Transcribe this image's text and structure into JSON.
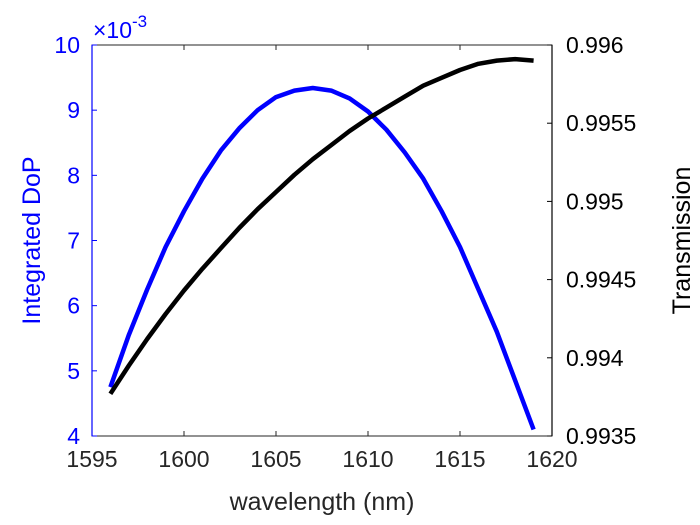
{
  "chart_data": {
    "type": "line",
    "title": "",
    "xlabel": "wavelength (nm)",
    "ylabel_left": "Integrated DoP",
    "ylabel_right": "Transmission",
    "xlim": [
      1595,
      1620
    ],
    "ylim_left": [
      4,
      10
    ],
    "ylim_right": [
      0.9935,
      0.996
    ],
    "x_ticks": [
      "1595",
      "1600",
      "1605",
      "1610",
      "1615",
      "1620"
    ],
    "y_left_ticks": [
      "4",
      "5",
      "6",
      "7",
      "8",
      "9",
      "10"
    ],
    "y_right_ticks": [
      "0.9935",
      "0.994",
      "0.9945",
      "0.995",
      "0.9955",
      "0.996"
    ],
    "y_left_exponent": {
      "base": "×10",
      "power": "-3"
    },
    "grid": false,
    "legend": "none",
    "colors": {
      "left": "#0000ff",
      "right": "#000000",
      "axes": "#262626"
    },
    "series": [
      {
        "axis": "left",
        "color": "#0000ff",
        "x": [
          1596,
          1597,
          1598,
          1599,
          1600,
          1601,
          1602,
          1603,
          1604,
          1605,
          1606,
          1607,
          1608,
          1609,
          1610,
          1611,
          1612,
          1613,
          1614,
          1615,
          1616,
          1617,
          1618,
          1619
        ],
        "values": [
          4.75,
          5.55,
          6.25,
          6.9,
          7.45,
          7.95,
          8.38,
          8.72,
          9.0,
          9.2,
          9.3,
          9.34,
          9.3,
          9.18,
          8.98,
          8.7,
          8.35,
          7.95,
          7.45,
          6.9,
          6.25,
          5.6,
          4.85,
          4.1
        ]
      },
      {
        "axis": "right",
        "color": "#000000",
        "x": [
          1596,
          1597,
          1598,
          1599,
          1600,
          1601,
          1602,
          1603,
          1604,
          1605,
          1606,
          1607,
          1608,
          1609,
          1610,
          1611,
          1612,
          1613,
          1614,
          1615,
          1616,
          1617,
          1618,
          1619
        ],
        "values": [
          0.99377,
          0.99395,
          0.99412,
          0.99428,
          0.99443,
          0.99457,
          0.9947,
          0.99483,
          0.99495,
          0.99506,
          0.99517,
          0.99527,
          0.99536,
          0.99545,
          0.99553,
          0.9956,
          0.99567,
          0.99574,
          0.99579,
          0.99584,
          0.99588,
          0.9959,
          0.99591,
          0.9959
        ]
      }
    ]
  }
}
